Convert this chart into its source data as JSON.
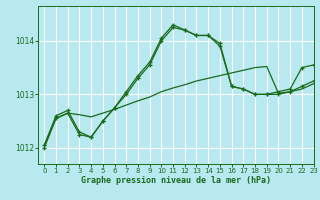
{
  "background_color": "#b8e8f0",
  "grid_color": "#ffffff",
  "line_color": "#1a6b1a",
  "xlabel": "Graphe pression niveau de la mer (hPa)",
  "xlim": [
    -0.5,
    23
  ],
  "ylim": [
    1011.7,
    1014.65
  ],
  "yticks": [
    1012,
    1013,
    1014
  ],
  "xticks": [
    0,
    1,
    2,
    3,
    4,
    5,
    6,
    7,
    8,
    9,
    10,
    11,
    12,
    13,
    14,
    15,
    16,
    17,
    18,
    19,
    20,
    21,
    22,
    23
  ],
  "series_main_x": [
    0,
    1,
    2,
    3,
    4,
    5,
    6,
    7,
    8,
    9,
    10,
    11,
    12,
    13,
    14,
    15,
    16,
    17,
    18,
    19,
    20,
    21,
    22,
    23
  ],
  "series_main_y": [
    1012.0,
    1012.55,
    1012.65,
    1012.25,
    1012.2,
    1012.5,
    1012.75,
    1013.05,
    1013.35,
    1013.6,
    1014.05,
    1014.3,
    1014.2,
    1014.1,
    1014.1,
    1013.95,
    1013.15,
    1013.1,
    1013.0,
    1013.0,
    1013.0,
    1013.05,
    1013.15,
    1013.25
  ],
  "series_upper_x": [
    0,
    1,
    2,
    3,
    4,
    5,
    6,
    7,
    8,
    9,
    10,
    11,
    12,
    13,
    14,
    15,
    16,
    17,
    18,
    19,
    20,
    21,
    22,
    23
  ],
  "series_upper_y": [
    1012.05,
    1012.6,
    1012.7,
    1012.3,
    1012.2,
    1012.5,
    1012.75,
    1013.0,
    1013.3,
    1013.55,
    1014.0,
    1014.25,
    1014.2,
    1014.1,
    1014.1,
    1013.9,
    1013.15,
    1013.1,
    1013.0,
    1013.0,
    1013.05,
    1013.1,
    1013.5,
    1013.55
  ],
  "series_flat_x": [
    0,
    1,
    2,
    3,
    4,
    5,
    6,
    7,
    8,
    9,
    10,
    11,
    12,
    13,
    14,
    15,
    16,
    17,
    18,
    19,
    20,
    21,
    22,
    23
  ],
  "series_flat_y": [
    1012.05,
    1012.55,
    1012.65,
    1012.62,
    1012.58,
    1012.65,
    1012.72,
    1012.8,
    1012.88,
    1012.95,
    1013.05,
    1013.12,
    1013.18,
    1013.25,
    1013.3,
    1013.35,
    1013.4,
    1013.45,
    1013.5,
    1013.52,
    1013.02,
    1013.05,
    1013.1,
    1013.2
  ],
  "figsize": [
    3.2,
    2.0
  ],
  "dpi": 100
}
